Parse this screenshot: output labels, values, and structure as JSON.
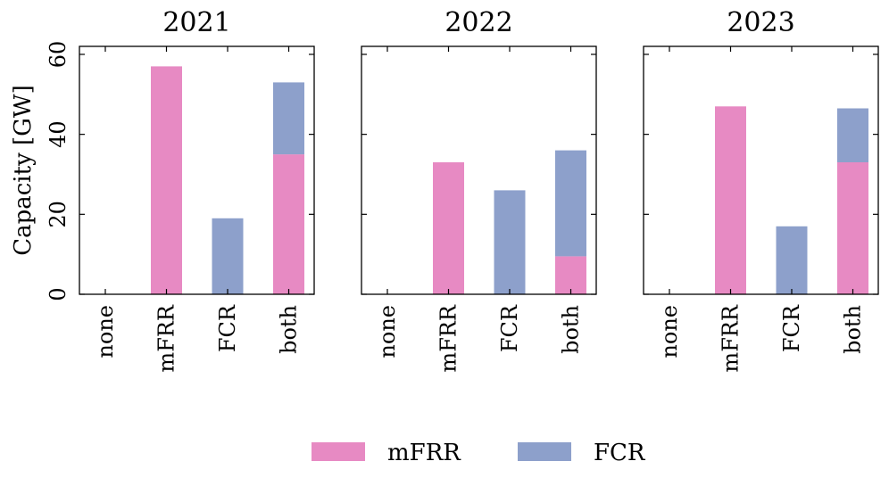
{
  "chart_data": {
    "type": "bar",
    "stacked": true,
    "ylabel": "Capacity [GW]",
    "ylim": [
      0,
      62
    ],
    "yticks": [
      "0",
      "20",
      "40",
      "60"
    ],
    "categories": [
      "none",
      "mFRR",
      "FCR",
      "both"
    ],
    "legend": [
      {
        "name": "mFRR",
        "color": "#e78ac3"
      },
      {
        "name": "FCR",
        "color": "#8da0cb"
      }
    ],
    "panels": [
      {
        "title": "2021",
        "series": [
          {
            "name": "mFRR",
            "values": [
              0,
              57,
              0,
              35
            ]
          },
          {
            "name": "FCR",
            "values": [
              0,
              0,
              19,
              18
            ]
          }
        ]
      },
      {
        "title": "2022",
        "series": [
          {
            "name": "mFRR",
            "values": [
              0,
              33,
              0,
              9.5
            ]
          },
          {
            "name": "FCR",
            "values": [
              0,
              0,
              26,
              26.5
            ]
          }
        ]
      },
      {
        "title": "2023",
        "series": [
          {
            "name": "mFRR",
            "values": [
              0,
              47,
              0,
              33
            ]
          },
          {
            "name": "FCR",
            "values": [
              0,
              0,
              17,
              13.5
            ]
          }
        ]
      }
    ]
  }
}
